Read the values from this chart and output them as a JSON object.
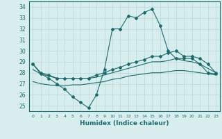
{
  "x": [
    0,
    1,
    2,
    3,
    4,
    5,
    6,
    7,
    8,
    9,
    10,
    11,
    12,
    13,
    14,
    15,
    16,
    17,
    18,
    19,
    20,
    21,
    22,
    23
  ],
  "line1": [
    28.8,
    27.9,
    27.5,
    27.0,
    26.5,
    25.8,
    25.3,
    24.8,
    26.0,
    28.3,
    32.0,
    32.0,
    33.2,
    33.0,
    33.5,
    33.8,
    32.3,
    30.0,
    29.3,
    29.3,
    29.3,
    28.8,
    28.0,
    27.9
  ],
  "line2": [
    28.8,
    28.0,
    27.8,
    27.5,
    27.5,
    27.5,
    27.5,
    27.5,
    27.8,
    28.0,
    28.3,
    28.5,
    28.8,
    29.0,
    29.2,
    29.5,
    29.5,
    29.8,
    30.0,
    29.5,
    29.5,
    29.3,
    28.8,
    28.0
  ],
  "line3": [
    28.3,
    27.9,
    27.7,
    27.5,
    27.5,
    27.5,
    27.5,
    27.5,
    27.6,
    27.8,
    28.0,
    28.2,
    28.4,
    28.6,
    28.8,
    29.0,
    29.0,
    29.1,
    29.3,
    29.1,
    29.0,
    28.8,
    28.4,
    28.0
  ],
  "line4": [
    27.2,
    27.0,
    26.9,
    26.8,
    26.8,
    26.9,
    26.9,
    27.0,
    27.1,
    27.2,
    27.4,
    27.5,
    27.7,
    27.8,
    27.9,
    28.0,
    28.0,
    28.1,
    28.2,
    28.2,
    28.1,
    28.0,
    27.9,
    27.8
  ],
  "line_color": "#1a6b6b",
  "bg_color": "#d8eeee",
  "grid_color": "#b8d8d8",
  "ylabel_ticks": [
    25,
    26,
    27,
    28,
    29,
    30,
    31,
    32,
    33,
    34
  ],
  "xlabel": "Humidex (Indice chaleur)",
  "ylim": [
    24.5,
    34.5
  ],
  "xlim": [
    -0.5,
    23.5
  ]
}
